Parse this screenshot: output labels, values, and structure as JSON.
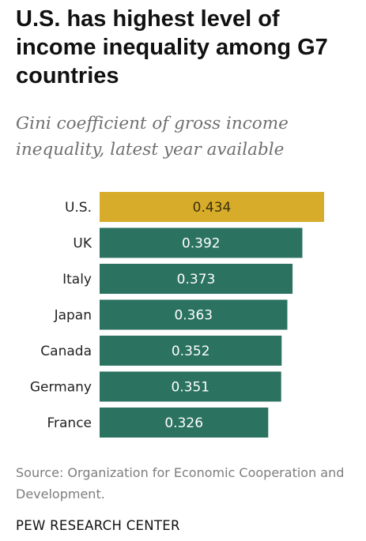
{
  "title": "U.S. has highest level of income inequality among G7 countries",
  "subtitle": "Gini coefficient of gross income inequality, latest year available",
  "source": "Source: Organization for Economic Cooperation and Development.",
  "footer": "PEW RESEARCH CENTER",
  "colors": {
    "highlight": "#d8ac2b",
    "bar": "#2b7260",
    "label_on_bar": "#ffffff",
    "category_text": "#222222"
  },
  "chart_data": {
    "type": "bar",
    "orientation": "horizontal",
    "categories": [
      "U.S.",
      "UK",
      "Italy",
      "Japan",
      "Canada",
      "Germany",
      "France"
    ],
    "values": [
      0.434,
      0.392,
      0.373,
      0.363,
      0.352,
      0.351,
      0.326
    ],
    "value_labels": [
      "0.434",
      "0.392",
      "0.373",
      "0.363",
      "0.352",
      "0.351",
      "0.326"
    ],
    "highlight_category": "U.S.",
    "xlim": [
      0,
      0.434
    ],
    "grid": false,
    "legend": "none",
    "title": "",
    "xlabel": "",
    "ylabel": ""
  }
}
